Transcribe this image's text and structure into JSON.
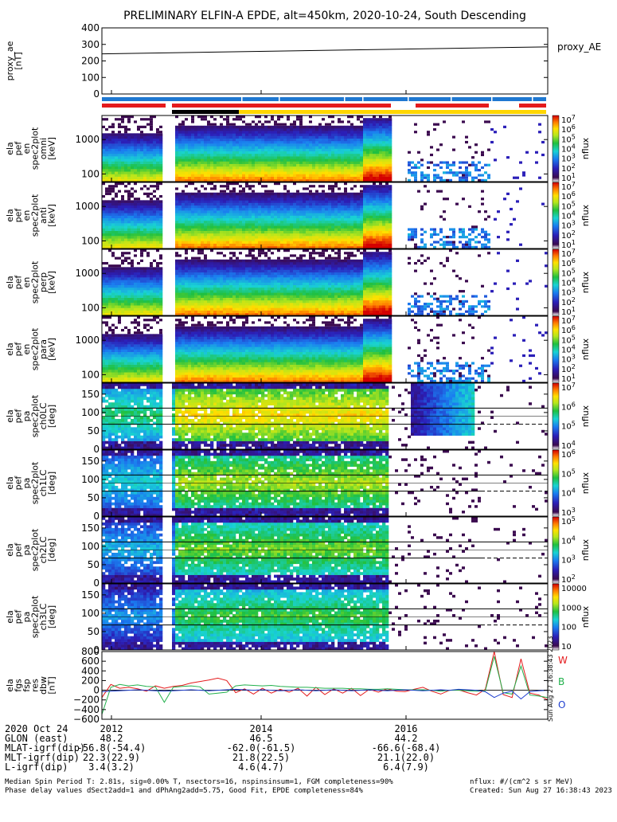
{
  "title": "PRELIMINARY ELFIN-A EPDE, alt=450km, 2020-10-24, South Descending",
  "colors": {
    "orbit_red": "#e41a1c",
    "orbit_blue": "#1f78d1",
    "orbit_black": "#000000",
    "orbit_yellow": "#ffd600"
  },
  "chart_data": [
    {
      "type": "line",
      "panel": "proxy_ae",
      "ylabel": [
        "proxy_ae",
        "[nT]"
      ],
      "yticks": [
        "400",
        "300",
        "200",
        "100",
        "0"
      ],
      "ylim": [
        0,
        400
      ],
      "series": [
        {
          "name": "proxy_AE",
          "x": [
            0,
            1
          ],
          "values": [
            243,
            285
          ]
        }
      ],
      "legend": "right"
    },
    {
      "type": "heatmap",
      "panel": "spec_a",
      "ylabel": [
        "ela",
        "pef",
        "en",
        "spec2plot",
        "omni",
        "[keV]"
      ],
      "yticks": [
        "1000",
        "100"
      ],
      "ylog": true,
      "ylim": [
        60,
        5000
      ],
      "colorbar": {
        "label": "nflux",
        "ticks": [
          "10^7",
          "10^6",
          "10^5",
          "10^4",
          "10^3",
          "10^2",
          "10^1"
        ]
      }
    },
    {
      "type": "heatmap",
      "panel": "spec_b",
      "ylabel": [
        "ela",
        "pef",
        "en",
        "spec2plot",
        "anti",
        "[keV]"
      ],
      "yticks": [
        "1000",
        "100"
      ],
      "ylog": true,
      "ylim": [
        60,
        5000
      ],
      "colorbar": {
        "label": "nflux",
        "ticks": [
          "10^7",
          "10^6",
          "10^5",
          "10^4",
          "10^3",
          "10^2",
          "10^1"
        ]
      }
    },
    {
      "type": "heatmap",
      "panel": "spec_c",
      "ylabel": [
        "ela",
        "pef",
        "en",
        "spec2plot",
        "perp",
        "[keV]"
      ],
      "yticks": [
        "1000",
        "100"
      ],
      "ylog": true,
      "ylim": [
        60,
        5000
      ],
      "colorbar": {
        "label": "nflux",
        "ticks": [
          "10^7",
          "10^6",
          "10^5",
          "10^4",
          "10^3",
          "10^2",
          "10^1"
        ]
      }
    },
    {
      "type": "heatmap",
      "panel": "spec_d",
      "ylabel": [
        "ela",
        "pef",
        "en",
        "spec2plot",
        "para",
        "[keV]"
      ],
      "yticks": [
        "1000",
        "100"
      ],
      "ylog": true,
      "ylim": [
        60,
        5000
      ],
      "colorbar": {
        "label": "nflux",
        "ticks": [
          "10^7",
          "10^6",
          "10^5",
          "10^4",
          "10^3",
          "10^2",
          "10^1"
        ]
      }
    },
    {
      "type": "heatmap",
      "panel": "pa_0",
      "ylabel": [
        "ela",
        "pef",
        "pa",
        "spec2plot",
        "ch0LC",
        "[deg]"
      ],
      "yticks": [
        "150",
        "100",
        "50",
        "0"
      ],
      "ylim": [
        0,
        180
      ],
      "colorbar": {
        "label": "nflux",
        "ticks": [
          "10^7",
          "10^6",
          "10^5",
          "10^4"
        ]
      }
    },
    {
      "type": "heatmap",
      "panel": "pa_1",
      "ylabel": [
        "ela",
        "pef",
        "pa",
        "spec2plot",
        "ch1LC",
        "[deg]"
      ],
      "yticks": [
        "150",
        "100",
        "50",
        "0"
      ],
      "ylim": [
        0,
        180
      ],
      "colorbar": {
        "label": "nflux",
        "ticks": [
          "10^6",
          "10^5",
          "10^4",
          "10^3"
        ]
      }
    },
    {
      "type": "heatmap",
      "panel": "pa_2",
      "ylabel": [
        "ela",
        "pef",
        "pa",
        "spec2plot",
        "ch2LC",
        "[deg]"
      ],
      "yticks": [
        "150",
        "100",
        "50",
        "0"
      ],
      "ylim": [
        0,
        180
      ],
      "colorbar": {
        "label": "nflux",
        "ticks": [
          "10^5",
          "10^4",
          "10^3",
          "10^2"
        ]
      }
    },
    {
      "type": "heatmap",
      "panel": "pa_3",
      "ylabel": [
        "ela",
        "pef",
        "pa",
        "spec2plot",
        "ch3LC",
        "[deg]"
      ],
      "yticks": [
        "150",
        "100",
        "50",
        "0"
      ],
      "ylim": [
        0,
        180
      ],
      "colorbar": {
        "label": "nflux",
        "ticks": [
          "10000",
          "1000",
          "100",
          "10"
        ]
      }
    },
    {
      "type": "line",
      "panel": "fgs",
      "ylabel": [
        "ela",
        "fgs",
        "fsp",
        "res",
        "dbw",
        "[nT]"
      ],
      "yticks": [
        "800",
        "600",
        "400",
        "200",
        "0",
        "−200",
        "−400",
        "−600"
      ],
      "ylim": [
        -600,
        800
      ],
      "x": [
        0.0,
        0.02,
        0.04,
        0.06,
        0.08,
        0.1,
        0.12,
        0.14,
        0.16,
        0.18,
        0.2,
        0.22,
        0.24,
        0.26,
        0.28,
        0.3,
        0.32,
        0.34,
        0.36,
        0.38,
        0.4,
        0.42,
        0.44,
        0.46,
        0.48,
        0.5,
        0.52,
        0.54,
        0.56,
        0.58,
        0.6,
        0.62,
        0.64,
        0.66,
        0.68,
        0.7,
        0.72,
        0.74,
        0.76,
        0.78,
        0.8,
        0.82,
        0.84,
        0.86,
        0.88,
        0.9,
        0.92,
        0.94,
        0.96,
        0.98,
        1.0
      ],
      "series": [
        {
          "name": "W",
          "color": "#e41a1c",
          "values": [
            -150,
            120,
            40,
            60,
            30,
            -20,
            90,
            40,
            80,
            100,
            150,
            180,
            210,
            250,
            200,
            -50,
            30,
            -80,
            40,
            -60,
            20,
            -40,
            40,
            -120,
            60,
            -90,
            30,
            -60,
            40,
            -110,
            20,
            -40,
            30,
            -20,
            -30,
            20,
            60,
            -20,
            -80,
            0,
            10,
            -50,
            -100,
            20,
            800,
            -90,
            -150,
            650,
            -60,
            -100,
            -200
          ]
        },
        {
          "name": "B",
          "color": "#22b14c",
          "values": [
            -500,
            60,
            120,
            90,
            110,
            80,
            70,
            -250,
            60,
            80,
            90,
            70,
            -80,
            -60,
            -40,
            90,
            110,
            100,
            90,
            100,
            80,
            70,
            60,
            60,
            50,
            40,
            40,
            40,
            30,
            30,
            20,
            20,
            30,
            20,
            10,
            10,
            10,
            0,
            -20,
            0,
            0,
            -10,
            -20,
            -10,
            700,
            -50,
            -80,
            500,
            -100,
            -120,
            -150
          ]
        },
        {
          "name": "O",
          "color": "#1f3fd0",
          "values": [
            -30,
            -20,
            -10,
            0,
            10,
            0,
            -10,
            -20,
            -10,
            0,
            10,
            0,
            -10,
            0,
            10,
            20,
            10,
            0,
            10,
            0,
            -10,
            0,
            10,
            0,
            -10,
            0,
            10,
            0,
            -10,
            0,
            10,
            0,
            -10,
            0,
            10,
            0,
            -10,
            0,
            10,
            0,
            20,
            10,
            0,
            -30,
            -150,
            -60,
            -20,
            -180,
            -30,
            -10,
            0
          ]
        }
      ]
    }
  ],
  "x_tick_labels": [
    "2012",
    "2014",
    "2016"
  ],
  "side_stamp": "Sun Aug 27 16:38:43 2023",
  "ephemeris_rows": [
    {
      "label": "2020 Oct 24",
      "v1": "2012",
      "v2": "2014",
      "v3": "2016"
    },
    {
      "label": "GLON (east)",
      "v1": "48.2",
      "v2": "46.5",
      "v3": "44.2"
    },
    {
      "label": "MLAT-igrf(dip)",
      "v1": "-56.8(-54.4)",
      "v2": "-62.0(-61.5)",
      "v3": "-66.6(-68.4)"
    },
    {
      "label": "MLT-igrf(dip)",
      "v1": "22.3(22.9)",
      "v2": "21.8(22.5)",
      "v3": "21.1(22.0)"
    },
    {
      "label": "L-igrf(dip)",
      "v1": "3.4(3.2)",
      "v2": "4.6(4.7)",
      "v3": "6.4(7.9)"
    }
  ],
  "footer": {
    "line1_left": "Median Spin Period T: 2.81s, sig=0.00% T, nsectors=16, nspinsinsum=1, FGM completeness=90%",
    "line2_left": "Phase delay values dSect2add=1 and dPhAng2add=5.75, Good Fit, EPDE completeness=84%",
    "line1_right": "nflux: #/(cm^2 s sr MeV)",
    "line2_right": "Created: Sun Aug 27 16:38:43 2023"
  }
}
